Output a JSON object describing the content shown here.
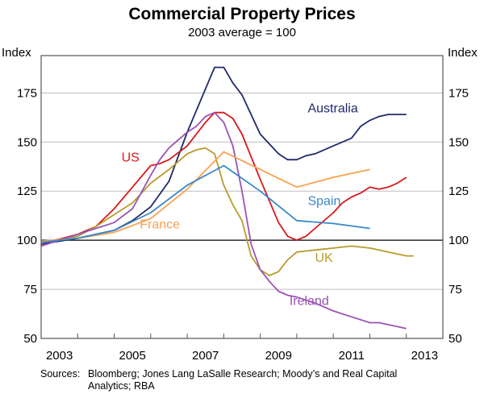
{
  "chart_data": {
    "type": "line",
    "title": "Commercial Property Prices",
    "subtitle": "2003 average = 100",
    "ylabel_left": "Index",
    "ylabel_right": "Index",
    "xlabel": "",
    "ylim": [
      50,
      194
    ],
    "xlim": [
      2003,
      2014
    ],
    "y_ticks": [
      50,
      75,
      100,
      125,
      150,
      175
    ],
    "y_tick_labels": [
      "50",
      "75",
      "100",
      "125",
      "150",
      "175"
    ],
    "x_tick_years": [
      2003,
      2004,
      2005,
      2006,
      2007,
      2008,
      2009,
      2010,
      2011,
      2012,
      2013,
      2014
    ],
    "x_labels": [
      {
        "text": "2003",
        "x": 2003.5
      },
      {
        "text": "2005",
        "x": 2005.5
      },
      {
        "text": "2007",
        "x": 2007.5
      },
      {
        "text": "2009",
        "x": 2009.5
      },
      {
        "text": "2011",
        "x": 2011.5
      },
      {
        "text": "2013",
        "x": 2013.5
      }
    ],
    "grid": true,
    "reference_line": 100,
    "legend": "inline labels",
    "series": [
      {
        "name": "Australia",
        "color": "#1f2a6b",
        "label": {
          "text": "Australia",
          "x": 2010.3,
          "y": 165
        },
        "x": [
          2003.0,
          2003.5,
          2004.0,
          2004.5,
          2005.0,
          2005.5,
          2006.0,
          2006.5,
          2007.0,
          2007.5,
          2007.75,
          2008.0,
          2008.25,
          2008.5,
          2009.0,
          2009.5,
          2009.75,
          2010.0,
          2010.25,
          2010.5,
          2011.0,
          2011.5,
          2011.75,
          2012.0,
          2012.25,
          2012.5,
          2013.0
        ],
        "y": [
          98,
          99.5,
          101,
          103,
          105,
          110,
          117,
          130,
          155,
          177,
          188,
          188,
          180,
          174,
          154,
          144,
          141,
          141,
          143,
          144,
          148,
          152,
          158,
          161,
          163,
          164,
          164
        ]
      },
      {
        "name": "US",
        "color": "#d7191c",
        "label": {
          "text": "US",
          "x": 2005.2,
          "y": 140
        },
        "x": [
          2003.0,
          2003.5,
          2004.0,
          2004.5,
          2005.0,
          2005.5,
          2006.0,
          2006.25,
          2006.5,
          2007.0,
          2007.5,
          2007.75,
          2008.0,
          2008.25,
          2008.5,
          2009.0,
          2009.5,
          2009.75,
          2010.0,
          2010.25,
          2010.5,
          2011.0,
          2011.25,
          2011.5,
          2011.75,
          2012.0,
          2012.25,
          2012.5,
          2012.75,
          2013.0
        ],
        "y": [
          99,
          100.5,
          103,
          107,
          116,
          127,
          138,
          139,
          141,
          148,
          160,
          165,
          165,
          162,
          154,
          131,
          109,
          102,
          100,
          102,
          106,
          114,
          119,
          122,
          124,
          127,
          126,
          127,
          129,
          132
        ]
      },
      {
        "name": "UK",
        "color": "#b89b2c",
        "label": {
          "text": "UK",
          "x": 2010.5,
          "y": 89
        },
        "x": [
          2003.0,
          2003.5,
          2004.0,
          2004.5,
          2005.0,
          2005.5,
          2006.0,
          2006.5,
          2007.0,
          2007.25,
          2007.5,
          2007.75,
          2008.0,
          2008.25,
          2008.5,
          2008.75,
          2009.0,
          2009.25,
          2009.5,
          2009.75,
          2010.0,
          2010.5,
          2011.0,
          2011.5,
          2012.0,
          2012.5,
          2013.0,
          2013.2
        ],
        "y": [
          99,
          100,
          102,
          107,
          113,
          119,
          129,
          136,
          144,
          146,
          147,
          144,
          128,
          118,
          110,
          92,
          85,
          82,
          84,
          90,
          94,
          95,
          96,
          97,
          96,
          94,
          92,
          92
        ]
      },
      {
        "name": "Ireland",
        "color": "#9b52b5",
        "label": {
          "text": "Ireland",
          "x": 2009.8,
          "y": 67
        },
        "x": [
          2003.0,
          2003.5,
          2004.0,
          2004.5,
          2005.0,
          2005.5,
          2006.0,
          2006.25,
          2006.5,
          2007.0,
          2007.25,
          2007.5,
          2007.75,
          2008.0,
          2008.25,
          2008.5,
          2008.75,
          2009.0,
          2009.25,
          2009.5,
          2009.75,
          2010.0,
          2010.5,
          2011.0,
          2011.5,
          2012.0,
          2012.25,
          2012.5,
          2013.0
        ],
        "y": [
          97,
          100,
          103,
          106,
          109,
          116,
          133,
          141,
          147,
          155,
          158,
          163,
          165,
          160,
          148,
          125,
          98,
          85,
          79,
          74,
          72,
          71,
          68,
          64,
          61,
          58,
          58,
          57,
          55
        ]
      },
      {
        "name": "France",
        "color": "#f9a24f",
        "label": {
          "text": "France",
          "x": 2005.7,
          "y": 106
        },
        "x": [
          2003.0,
          2004.0,
          2005.0,
          2006.0,
          2007.0,
          2008.0,
          2010.0,
          2011.0,
          2012.0
        ],
        "y": [
          99.5,
          101,
          104,
          111,
          126,
          145,
          127,
          132,
          136
        ]
      },
      {
        "name": "Spain",
        "color": "#3b87c8",
        "label": {
          "text": "Spain",
          "x": 2010.3,
          "y": 118
        },
        "x": [
          2003.0,
          2004.0,
          2005.0,
          2006.0,
          2007.0,
          2008.0,
          2009.0,
          2010.0,
          2011.0,
          2012.0
        ],
        "y": [
          99,
          101,
          105,
          114,
          128,
          138,
          125,
          110,
          108.5,
          106
        ]
      }
    ]
  },
  "footer": {
    "sources_label": "Sources:",
    "sources_line1": "Bloomberg; Jones Lang LaSalle Research; Moody’s and Real Capital",
    "sources_line2": "Analytics; RBA"
  }
}
